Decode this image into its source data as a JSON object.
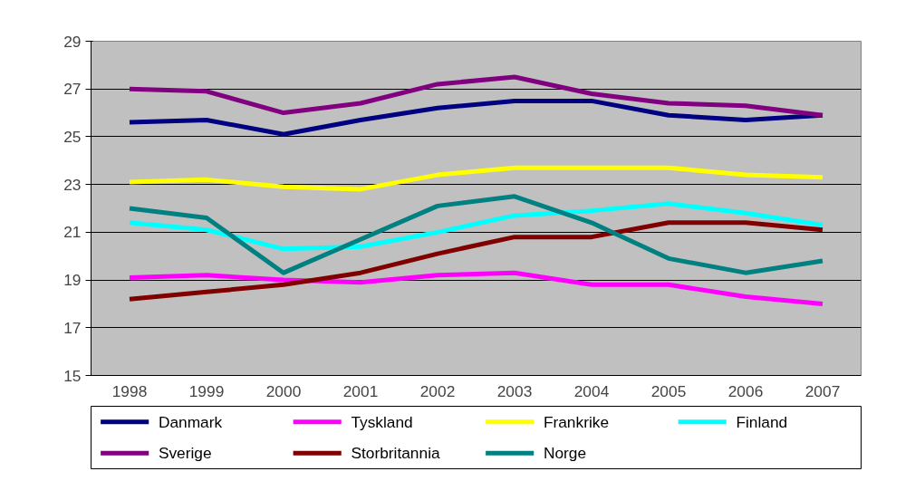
{
  "chart_data": {
    "type": "line",
    "categories": [
      "1998",
      "1999",
      "2000",
      "2001",
      "2002",
      "2003",
      "2004",
      "2005",
      "2006",
      "2007"
    ],
    "series": [
      {
        "name": "Danmark",
        "color": "#000080",
        "values": [
          25.6,
          25.7,
          25.1,
          25.7,
          26.2,
          26.5,
          26.5,
          25.9,
          25.7,
          25.9
        ]
      },
      {
        "name": "Tyskland",
        "color": "#ff00ff",
        "values": [
          19.1,
          19.2,
          19.0,
          18.9,
          19.2,
          19.3,
          18.8,
          18.8,
          18.3,
          18.0
        ]
      },
      {
        "name": "Frankrike",
        "color": "#ffff00",
        "values": [
          23.1,
          23.2,
          22.9,
          22.8,
          23.4,
          23.7,
          23.7,
          23.7,
          23.4,
          23.3
        ]
      },
      {
        "name": "Finland",
        "color": "#00ffff",
        "values": [
          21.4,
          21.1,
          20.3,
          20.4,
          21.0,
          21.7,
          21.9,
          22.2,
          21.8,
          21.3
        ]
      },
      {
        "name": "Sverige",
        "color": "#800080",
        "values": [
          27.0,
          26.9,
          26.0,
          26.4,
          27.2,
          27.5,
          26.8,
          26.4,
          26.3,
          25.9
        ]
      },
      {
        "name": "Storbritannia",
        "color": "#800000",
        "values": [
          18.2,
          18.5,
          18.8,
          19.3,
          20.1,
          20.8,
          20.8,
          21.4,
          21.4,
          21.1
        ]
      },
      {
        "name": "Norge",
        "color": "#008080",
        "values": [
          22.0,
          21.6,
          19.3,
          20.7,
          22.1,
          22.5,
          21.4,
          19.9,
          19.3,
          19.8
        ]
      }
    ],
    "ylim": [
      15,
      29
    ],
    "yticks": [
      15,
      17,
      19,
      21,
      23,
      25,
      27,
      29
    ],
    "grid": "y",
    "legend": "bottom",
    "marker": "none",
    "line_style": "solid"
  }
}
